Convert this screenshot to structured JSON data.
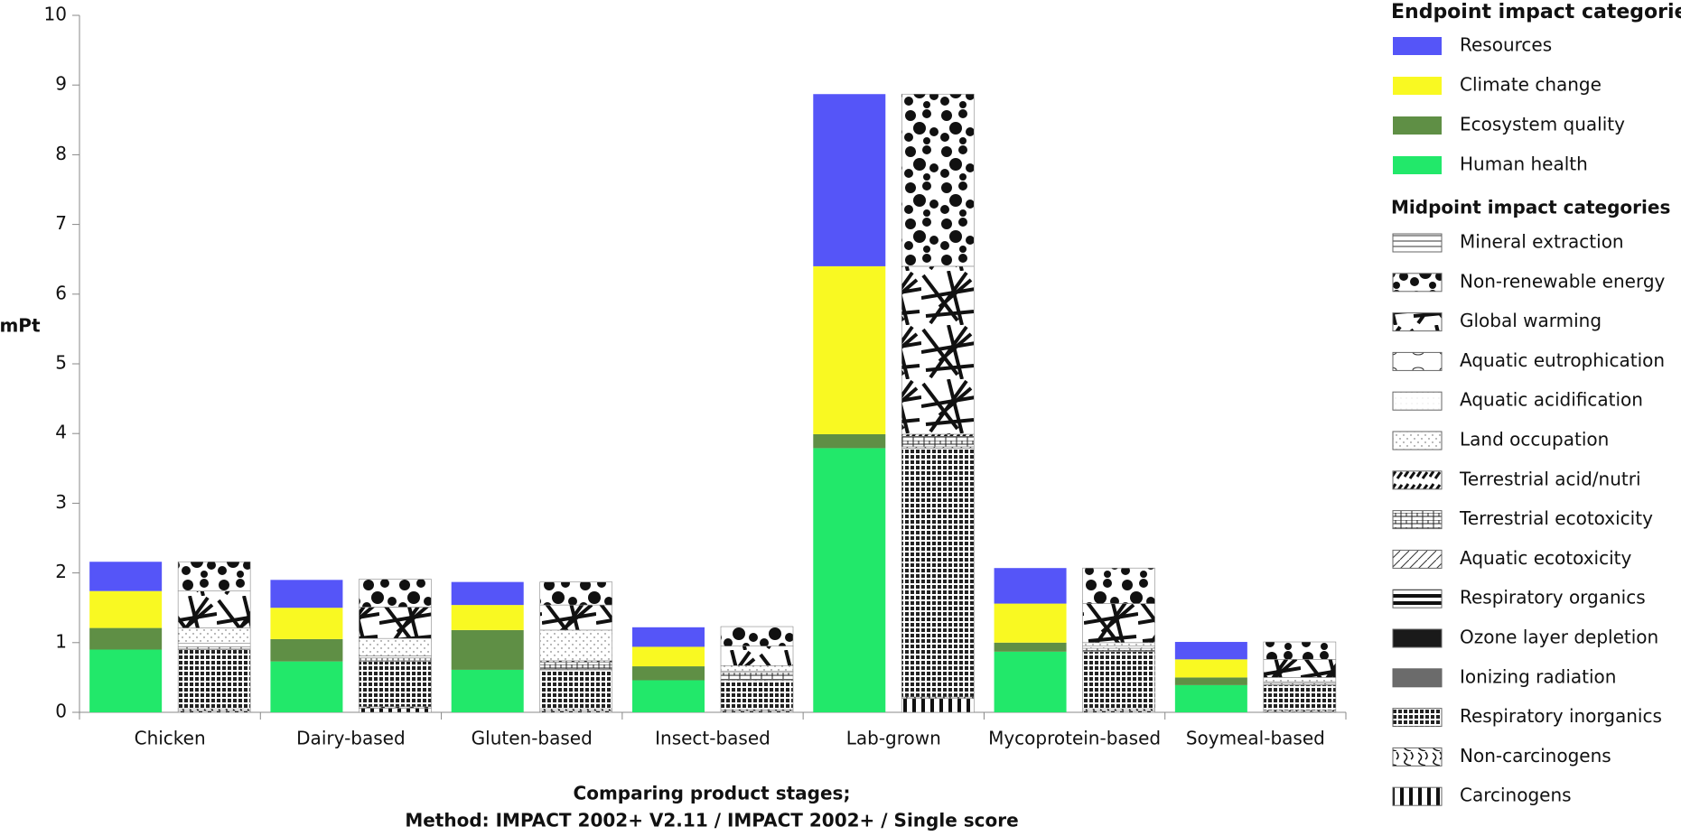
{
  "chart_data": {
    "type": "bar",
    "stacked": true,
    "y_label": "mPt",
    "x_label": [
      "Comparing product stages;",
      "Method: IMPACT 2002+ V2.11 / IMPACT 2002+ / Single score"
    ],
    "categories": [
      "Chicken",
      "Dairy-based",
      "Gluten-based",
      "Insect-based",
      "Lab-grown",
      "Mycoprotein-based",
      "Soymeal-based"
    ],
    "ylim": [
      0,
      10
    ],
    "yticks": [
      0,
      1,
      2,
      3,
      4,
      5,
      6,
      7,
      8,
      9,
      10
    ],
    "groups": [
      {
        "title": "Endpoint impact categories",
        "series": [
          {
            "name": "Human health",
            "color": "#22e86a",
            "values": [
              0.9,
              0.73,
              0.61,
              0.46,
              3.79,
              0.87,
              0.39
            ]
          },
          {
            "name": "Ecosystem quality",
            "color": "#5f8f45",
            "values": [
              0.31,
              0.32,
              0.57,
              0.2,
              0.2,
              0.13,
              0.11
            ]
          },
          {
            "name": "Climate change",
            "color": "#f9f922",
            "values": [
              0.53,
              0.45,
              0.36,
              0.28,
              2.41,
              0.56,
              0.26
            ]
          },
          {
            "name": "Resources",
            "color": "#5555f8",
            "values": [
              0.42,
              0.4,
              0.33,
              0.28,
              2.47,
              0.51,
              0.25
            ]
          }
        ]
      },
      {
        "title": "Midpoint impact categories",
        "series": [
          {
            "name": "Carcinogens",
            "pattern": "vbars",
            "values": [
              0.02,
              0.06,
              0.02,
              0.02,
              0.2,
              0.02,
              0.01
            ]
          },
          {
            "name": "Non-carcinogens",
            "pattern": "squiggle",
            "values": [
              0.03,
              0.02,
              0.03,
              0.02,
              0.02,
              0.03,
              0.02
            ]
          },
          {
            "name": "Respiratory inorganics",
            "pattern": "checks",
            "values": [
              0.85,
              0.65,
              0.56,
              0.42,
              3.57,
              0.82,
              0.36
            ]
          },
          {
            "name": "Ionizing radiation",
            "pattern": "gray",
            "values": [
              0,
              0,
              0,
              0,
              0,
              0,
              0
            ]
          },
          {
            "name": "Ozone layer depletion",
            "pattern": "black",
            "values": [
              0,
              0,
              0,
              0,
              0,
              0,
              0
            ]
          },
          {
            "name": "Respiratory organics",
            "pattern": "hbars",
            "values": [
              0,
              0,
              0,
              0,
              0,
              0,
              0
            ]
          },
          {
            "name": "Aquatic ecotoxicity",
            "pattern": "diag",
            "values": [
              0.01,
              0.01,
              0.01,
              0.01,
              0.02,
              0.01,
              0.01
            ]
          },
          {
            "name": "Terrestrial ecotoxicity",
            "pattern": "grid",
            "values": [
              0.03,
              0.04,
              0.1,
              0.1,
              0.15,
              0.04,
              0.02
            ]
          },
          {
            "name": "Terrestrial acid/nutri",
            "pattern": "dashes",
            "values": [
              0.05,
              0.03,
              0.02,
              0.02,
              0.03,
              0.03,
              0.02
            ]
          },
          {
            "name": "Land occupation",
            "pattern": "dotdiag",
            "values": [
              0.22,
              0.25,
              0.44,
              0.08,
              0,
              0.05,
              0.06
            ]
          },
          {
            "name": "Aquatic acidification",
            "pattern": "faint",
            "values": [
              0,
              0,
              0,
              0,
              0,
              0,
              0
            ]
          },
          {
            "name": "Aquatic eutrophication",
            "pattern": "ellipse",
            "values": [
              0,
              0,
              0,
              0,
              0,
              0,
              0
            ]
          },
          {
            "name": "Global warming",
            "pattern": "sticks",
            "values": [
              0.53,
              0.45,
              0.36,
              0.28,
              2.41,
              0.56,
              0.26
            ]
          },
          {
            "name": "Non-renewable energy",
            "pattern": "blobs",
            "values": [
              0.42,
              0.4,
              0.33,
              0.28,
              2.47,
              0.51,
              0.25
            ]
          },
          {
            "name": "Mineral extraction",
            "pattern": "hlines",
            "values": [
              0,
              0,
              0,
              0,
              0,
              0,
              0
            ]
          }
        ]
      }
    ]
  }
}
